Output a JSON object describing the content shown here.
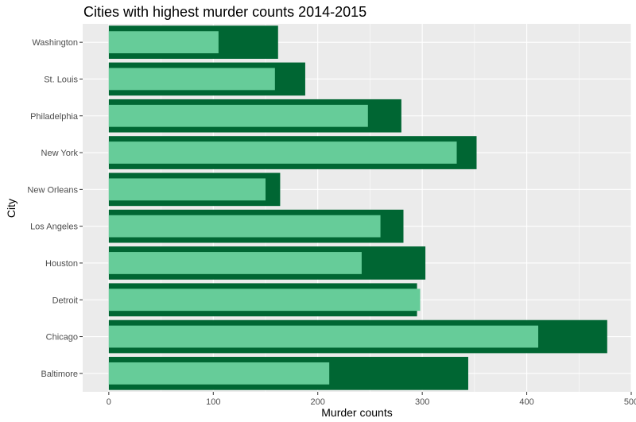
{
  "chart_data": {
    "type": "bar",
    "orientation": "horizontal",
    "title": "Cities with highest murder counts 2014-2015",
    "xlabel": "Murder counts",
    "ylabel": "City",
    "xlim": [
      -25,
      500
    ],
    "xticks": [
      0,
      100,
      200,
      300,
      400,
      500
    ],
    "grid": true,
    "categories": [
      "Baltimore",
      "Chicago",
      "Detroit",
      "Houston",
      "Los Angeles",
      "New Orleans",
      "New York",
      "Philadelphia",
      "St. Louis",
      "Washington"
    ],
    "series": [
      {
        "color": "#006633",
        "values": [
          344,
          477,
          295,
          303,
          282,
          164,
          352,
          280,
          188,
          162
        ]
      },
      {
        "color": "#66CC99",
        "values": [
          211,
          411,
          298,
          242,
          260,
          150,
          333,
          248,
          159,
          105
        ]
      }
    ]
  }
}
